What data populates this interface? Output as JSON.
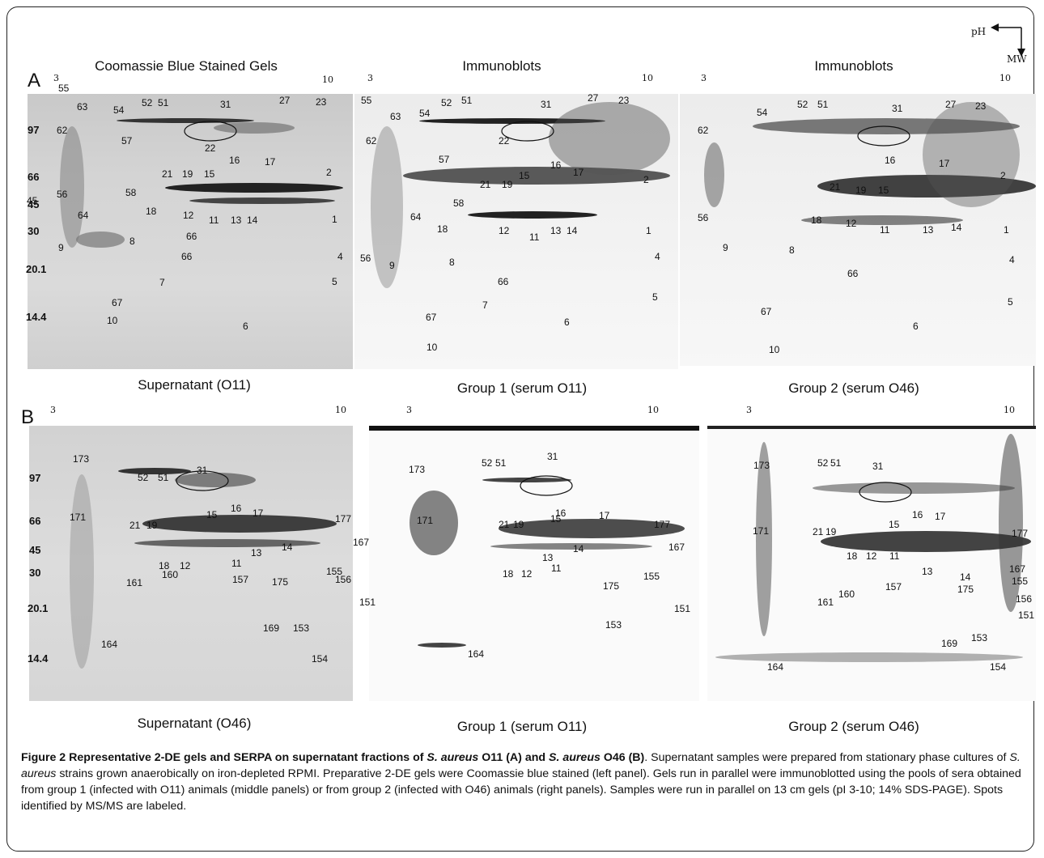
{
  "orientation": {
    "ph": "pH",
    "mw": "MW"
  },
  "row_a": {
    "letter": "A",
    "panels": [
      {
        "title": "Coomassie Blue Stained Gels",
        "caption": "Supernatant (O11)",
        "ph_low": "3",
        "ph_high": "10"
      },
      {
        "title": "Immunoblots",
        "caption": "Group 1 (serum O11)",
        "ph_low": "3",
        "ph_high": "10"
      },
      {
        "title": "Immunoblots",
        "caption": "Group 2 (serum O46)",
        "ph_low": "3",
        "ph_high": "10"
      }
    ],
    "mw_markers": [
      "97",
      "66",
      "45",
      "30",
      "20.1",
      "14.4"
    ]
  },
  "row_b": {
    "letter": "B",
    "panels": [
      {
        "caption": "Supernatant (O46)",
        "ph_low": "3",
        "ph_high": "10"
      },
      {
        "caption": "Group 1 (serum O11)",
        "ph_low": "3",
        "ph_high": "10"
      },
      {
        "caption": "Group 2 (serum O46)",
        "ph_low": "3",
        "ph_high": "10"
      }
    ],
    "mw_markers": [
      "97",
      "66",
      "45",
      "30",
      "20.1",
      "14.4"
    ]
  },
  "spot_labels": {
    "a1": [
      "55",
      "63",
      "54",
      "52",
      "51",
      "31",
      "27",
      "23",
      "62",
      "57",
      "22",
      "16",
      "17",
      "2",
      "21",
      "19",
      "15",
      "66",
      "45",
      "56",
      "64",
      "58",
      "18",
      "12",
      "11",
      "13",
      "14",
      "1",
      "9",
      "8",
      "66",
      "4",
      "7",
      "5",
      "67",
      "10",
      "6"
    ],
    "a2": [
      "55",
      "54",
      "52",
      "51",
      "31",
      "27",
      "23",
      "63",
      "62",
      "22",
      "57",
      "16",
      "17",
      "2",
      "21",
      "19",
      "15",
      "58",
      "64",
      "18",
      "12",
      "11",
      "13",
      "14",
      "1",
      "56",
      "9",
      "8",
      "66",
      "4",
      "7",
      "5",
      "67",
      "6",
      "10"
    ],
    "a3": [
      "62",
      "54",
      "52",
      "51",
      "31",
      "27",
      "23",
      "16",
      "17",
      "2",
      "21",
      "19",
      "15",
      "56",
      "18",
      "12",
      "11",
      "13",
      "14",
      "1",
      "9",
      "8",
      "66",
      "4",
      "67",
      "5",
      "6",
      "10"
    ],
    "b1": [
      "173",
      "52",
      "51",
      "31",
      "171",
      "15",
      "16",
      "17",
      "177",
      "21",
      "19",
      "167",
      "13",
      "14",
      "18",
      "12",
      "11",
      "157",
      "175",
      "155",
      "161",
      "160",
      "156",
      "151",
      "169",
      "153",
      "164",
      "154"
    ],
    "b2": [
      "173",
      "52",
      "51",
      "31",
      "171",
      "16",
      "15",
      "17",
      "21",
      "19",
      "177",
      "167",
      "14",
      "13",
      "18",
      "12",
      "11",
      "175",
      "155",
      "151",
      "153",
      "164"
    ],
    "b3": [
      "173",
      "52",
      "51",
      "31",
      "171",
      "16",
      "17",
      "21",
      "19",
      "15",
      "177",
      "18",
      "12",
      "11",
      "13",
      "14",
      "167",
      "157",
      "175",
      "155",
      "161",
      "160",
      "156",
      "151",
      "169",
      "153",
      "164",
      "154"
    ]
  },
  "caption": {
    "bold_lead": "Figure 2 Representative 2-DE gels and SERPA on supernatant fractions of ",
    "sa1": "S. aureus",
    "mid1": " O11 (A) and ",
    "sa2": "S. aureus",
    "mid2": " O46 (B)",
    "rest1": ". Supernatant samples were prepared from stationary phase cultures of ",
    "sa3": "S. aureus",
    "rest2": " strains grown anaerobically on iron-depleted RPMI. Preparative 2-DE gels were Coomassie blue stained (left panel). Gels run in parallel were immunoblotted using the pools of sera obtained from group 1 (infected with O11) animals (middle panels) or from group 2 (infected with O46) animals (right panels). Samples were run in parallel on 13 cm gels (pI 3-10; 14% SDS-PAGE). Spots identified by MS/MS are labeled."
  }
}
